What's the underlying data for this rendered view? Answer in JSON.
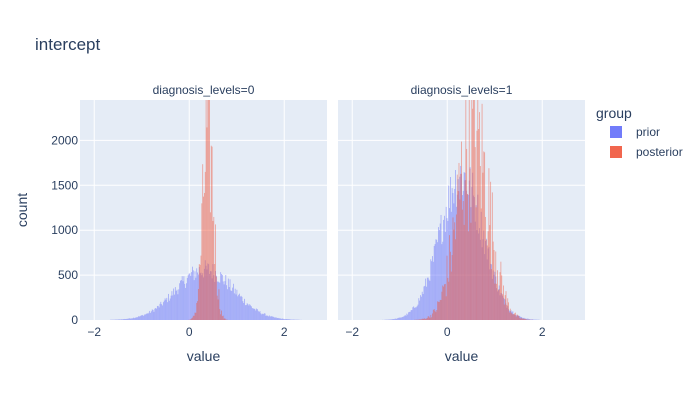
{
  "chart_data": {
    "type": "histogram",
    "title": "intercept",
    "xlabel": "value",
    "ylabel": "count",
    "xlim": [
      -2.3,
      2.9
    ],
    "ylim": [
      0,
      2450
    ],
    "y_ticks": [
      0,
      500,
      1000,
      1500,
      2000
    ],
    "x_ticks": [
      -2,
      0,
      2
    ],
    "grid": true,
    "legend": {
      "title": "group",
      "placement": "right",
      "entries": [
        {
          "name": "prior",
          "color": "#636efa"
        },
        {
          "name": "posterior",
          "color": "#ef553b"
        }
      ]
    },
    "panels": [
      {
        "label": "diagnosis_levels=0",
        "series": [
          {
            "name": "prior",
            "color": "#636efa",
            "distribution": "normal",
            "center": 0.33,
            "spread": 0.6,
            "peak": 560
          },
          {
            "name": "posterior",
            "color": "#ef553b",
            "distribution": "normal",
            "center": 0.4,
            "spread": 0.11,
            "peak": 2320
          }
        ]
      },
      {
        "label": "diagnosis_levels=1",
        "series": [
          {
            "name": "prior",
            "color": "#636efa",
            "distribution": "normal",
            "center": 0.3,
            "spread": 0.45,
            "peak": 1600
          },
          {
            "name": "posterior",
            "color": "#ef553b",
            "distribution": "normal",
            "center": 0.55,
            "spread": 0.33,
            "peak": 2300
          }
        ]
      }
    ]
  }
}
